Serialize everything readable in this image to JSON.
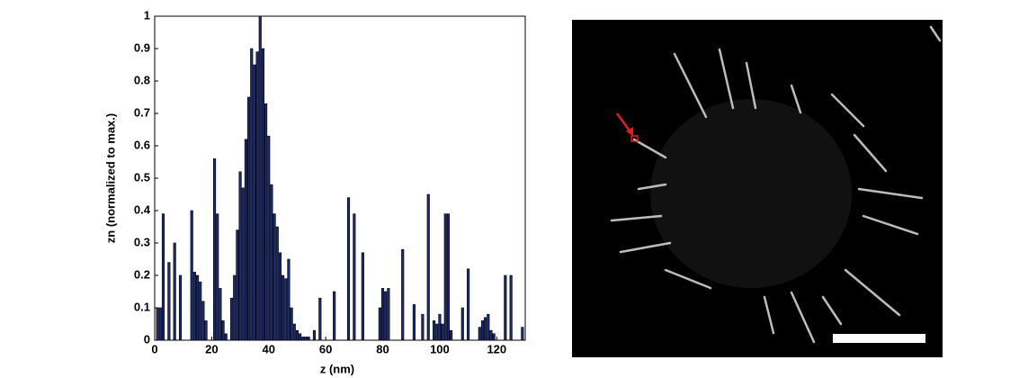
{
  "chart_data": {
    "type": "bar",
    "xlabel": "z (nm)",
    "ylabel": "zn (normalized to max.)",
    "x": [
      1,
      2,
      3,
      5,
      7,
      9,
      13,
      14,
      15,
      16,
      17,
      18,
      21,
      22,
      23,
      24,
      25,
      27,
      28,
      29,
      30,
      31,
      32,
      33,
      34,
      35,
      36,
      37,
      38,
      39,
      40,
      41,
      42,
      43,
      44,
      45,
      46,
      47,
      48,
      49,
      50,
      51,
      52,
      53,
      54,
      56,
      58,
      63,
      68,
      70,
      73,
      79,
      80,
      81,
      82,
      87,
      91,
      94,
      96,
      98,
      99,
      100,
      101,
      102,
      103,
      104,
      108,
      110,
      114,
      115,
      116,
      117,
      118,
      119,
      123,
      125,
      129
    ],
    "values": [
      0.1,
      0.1,
      0.39,
      0.24,
      0.3,
      0.2,
      0.4,
      0.21,
      0.2,
      0.18,
      0.12,
      0.06,
      0.56,
      0.39,
      0.16,
      0.06,
      0.02,
      0.13,
      0.2,
      0.34,
      0.52,
      0.47,
      0.62,
      0.75,
      0.9,
      0.85,
      0.89,
      1.0,
      0.9,
      0.73,
      0.63,
      0.48,
      0.39,
      0.35,
      0.27,
      0.2,
      0.19,
      0.25,
      0.1,
      0.05,
      0.03,
      0.02,
      0.01,
      0.01,
      0.01,
      0.03,
      0.13,
      0.15,
      0.44,
      0.39,
      0.27,
      0.1,
      0.16,
      0.15,
      0.16,
      0.28,
      0.11,
      0.08,
      0.45,
      0.06,
      0.05,
      0.08,
      0.05,
      0.39,
      0.39,
      0.03,
      0.1,
      0.22,
      0.04,
      0.06,
      0.07,
      0.08,
      0.03,
      0.02,
      0.2,
      0.2,
      0.04
    ],
    "color": "#1c2a6e",
    "xlim": [
      0,
      130
    ],
    "xticks": [
      0,
      20,
      40,
      60,
      80,
      100,
      120
    ],
    "ylim": [
      0,
      1
    ],
    "yticks": [
      0,
      0.1,
      0.2,
      0.3,
      0.4,
      0.5,
      0.6,
      0.7,
      0.8,
      0.9,
      1
    ]
  }
}
